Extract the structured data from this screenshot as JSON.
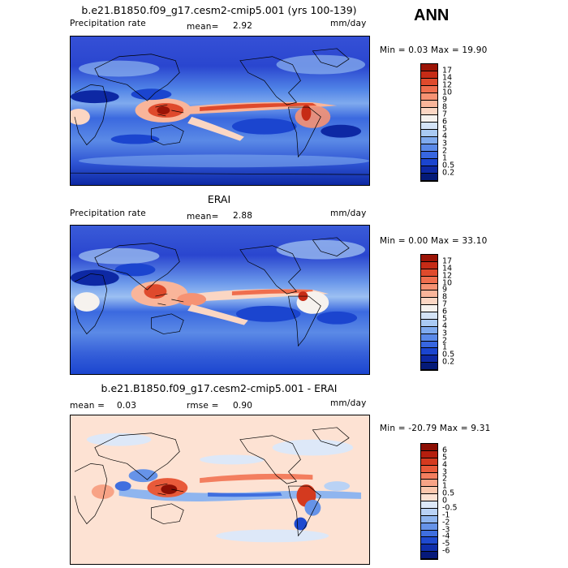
{
  "season": "ANN",
  "panels": [
    {
      "title": "b.e21.B1850.f09_g17.cesm2-cmip5.001 (yrs 100-139)",
      "left_label": "Precipitation rate",
      "mean_label": "mean=",
      "mean_value": "2.92",
      "units": "mm/day",
      "minmax": "Min =    0.03 Max =   19.90",
      "colorbar_levels": [
        "17",
        "14",
        "12",
        "10",
        "9",
        "8",
        "7",
        "6",
        "5",
        "4",
        "3",
        "2",
        "1",
        "0.5",
        "0.2"
      ],
      "colorbar_colors": [
        "#9b1406",
        "#c62b16",
        "#df4a2c",
        "#ef6e4e",
        "#f69273",
        "#f9b59a",
        "#fbd6c3",
        "#f6f2ee",
        "#d3e3f7",
        "#a9caf3",
        "#7faaee",
        "#5a89e8",
        "#3766e0",
        "#1b45cf",
        "#0d28a4",
        "#041a78"
      ]
    },
    {
      "title": "ERAI",
      "left_label": "Precipitation rate",
      "mean_label": "mean=",
      "mean_value": "2.88",
      "units": "mm/day",
      "minmax": "Min =    0.00 Max =   33.10",
      "colorbar_levels": [
        "17",
        "14",
        "12",
        "10",
        "9",
        "8",
        "7",
        "6",
        "5",
        "4",
        "3",
        "2",
        "1",
        "0.5",
        "0.2"
      ],
      "colorbar_colors": [
        "#9b1406",
        "#c62b16",
        "#df4a2c",
        "#ef6e4e",
        "#f69273",
        "#f9b59a",
        "#fbd6c3",
        "#f6f2ee",
        "#d3e3f7",
        "#a9caf3",
        "#7faaee",
        "#5a89e8",
        "#3766e0",
        "#1b45cf",
        "#0d28a4",
        "#041a78"
      ]
    },
    {
      "title": "b.e21.B1850.f09_g17.cesm2-cmip5.001 - ERAI",
      "mean_label": "mean =",
      "mean_value": "0.03",
      "rmse_label": "rmse =",
      "rmse_value": "0.90",
      "units": "mm/day",
      "minmax": "Min = -20.79 Max =    9.31",
      "colorbar_levels": [
        "6",
        "5",
        "4",
        "3",
        "2",
        "1",
        "0.5",
        "0",
        "-0.5",
        "-1",
        "-2",
        "-3",
        "-4",
        "-5",
        "-6"
      ],
      "colorbar_colors": [
        "#8c0f04",
        "#b51e0e",
        "#d43a1f",
        "#e85a3a",
        "#f37e5f",
        "#f8a386",
        "#fbc7ad",
        "#fde2d3",
        "#dde8f8",
        "#b9d2f5",
        "#8fb5ef",
        "#6693e8",
        "#3f6fdf",
        "#1f4acf",
        "#0f2eab",
        "#06197a"
      ]
    }
  ]
}
